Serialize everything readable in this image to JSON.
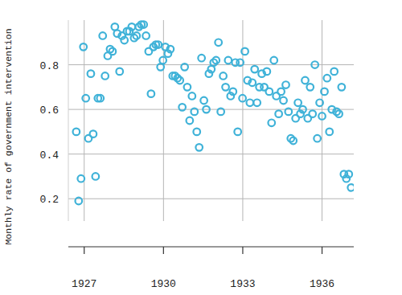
{
  "chart_data": {
    "type": "scatter",
    "y_label": "Monthly rate of government intervention",
    "color": "#3fb2d8",
    "marker": "circle",
    "grid": true,
    "xlim": [
      1926.4,
      1937.2
    ],
    "xticks": [
      1927,
      1930,
      1933,
      1936
    ],
    "ylim": [
      0.1,
      1.0
    ],
    "yticks": [
      0.2,
      0.4,
      0.6,
      0.8
    ],
    "x": [
      1926.7,
      1926.79,
      1926.88,
      1926.97,
      1927.06,
      1927.16,
      1927.25,
      1927.34,
      1927.43,
      1927.52,
      1927.61,
      1927.7,
      1927.79,
      1927.89,
      1927.98,
      1928.07,
      1928.16,
      1928.25,
      1928.34,
      1928.43,
      1928.52,
      1928.62,
      1928.71,
      1928.8,
      1928.89,
      1928.98,
      1929.07,
      1929.16,
      1929.25,
      1929.34,
      1929.44,
      1929.53,
      1929.62,
      1929.71,
      1929.8,
      1929.89,
      1929.98,
      1930.07,
      1930.17,
      1930.26,
      1930.35,
      1930.44,
      1930.53,
      1930.62,
      1930.71,
      1930.8,
      1930.9,
      1930.99,
      1931.08,
      1931.17,
      1931.26,
      1931.35,
      1931.44,
      1931.53,
      1931.62,
      1931.72,
      1931.81,
      1931.9,
      1931.99,
      1932.08,
      1932.17,
      1932.26,
      1932.35,
      1932.45,
      1932.54,
      1932.63,
      1932.72,
      1932.81,
      1932.9,
      1932.99,
      1933.08,
      1933.18,
      1933.27,
      1933.36,
      1933.45,
      1933.54,
      1933.63,
      1933.72,
      1933.81,
      1933.91,
      1934.0,
      1934.09,
      1934.18,
      1934.27,
      1934.36,
      1934.45,
      1934.54,
      1934.63,
      1934.73,
      1934.82,
      1934.91,
      1935.0,
      1935.09,
      1935.18,
      1935.27,
      1935.36,
      1935.46,
      1935.55,
      1935.64,
      1935.73,
      1935.82,
      1935.91,
      1936.0,
      1936.09,
      1936.19,
      1936.28,
      1936.37,
      1936.46,
      1936.55,
      1936.64,
      1936.74,
      1936.83,
      1936.92,
      1937.01,
      1937.1
    ],
    "values": [
      0.5,
      0.19,
      0.29,
      0.88,
      0.65,
      0.47,
      0.76,
      0.49,
      0.3,
      0.65,
      0.65,
      0.93,
      0.75,
      0.84,
      0.87,
      0.86,
      0.97,
      0.94,
      0.77,
      0.93,
      0.91,
      0.95,
      0.95,
      0.97,
      0.92,
      0.93,
      0.97,
      0.98,
      0.98,
      0.93,
      0.86,
      0.67,
      0.88,
      0.89,
      0.89,
      0.79,
      0.82,
      0.88,
      0.85,
      0.87,
      0.75,
      0.75,
      0.74,
      0.73,
      0.61,
      0.79,
      0.7,
      0.55,
      0.66,
      0.59,
      0.5,
      0.43,
      0.83,
      0.64,
      0.6,
      0.76,
      0.78,
      0.81,
      0.82,
      0.9,
      0.59,
      0.75,
      0.7,
      0.82,
      0.66,
      0.68,
      0.81,
      0.5,
      0.81,
      0.65,
      0.86,
      0.73,
      0.63,
      0.72,
      0.78,
      0.63,
      0.7,
      0.76,
      0.7,
      0.77,
      0.68,
      0.54,
      0.82,
      0.66,
      0.58,
      0.68,
      0.64,
      0.71,
      0.59,
      0.47,
      0.46,
      0.56,
      0.63,
      0.58,
      0.6,
      0.73,
      0.56,
      0.7,
      0.58,
      0.8,
      0.47,
      0.63,
      0.57,
      0.68,
      0.74,
      0.5,
      0.6,
      0.77,
      0.59,
      0.58,
      0.7,
      0.31,
      0.29,
      0.31,
      0.25
    ]
  }
}
